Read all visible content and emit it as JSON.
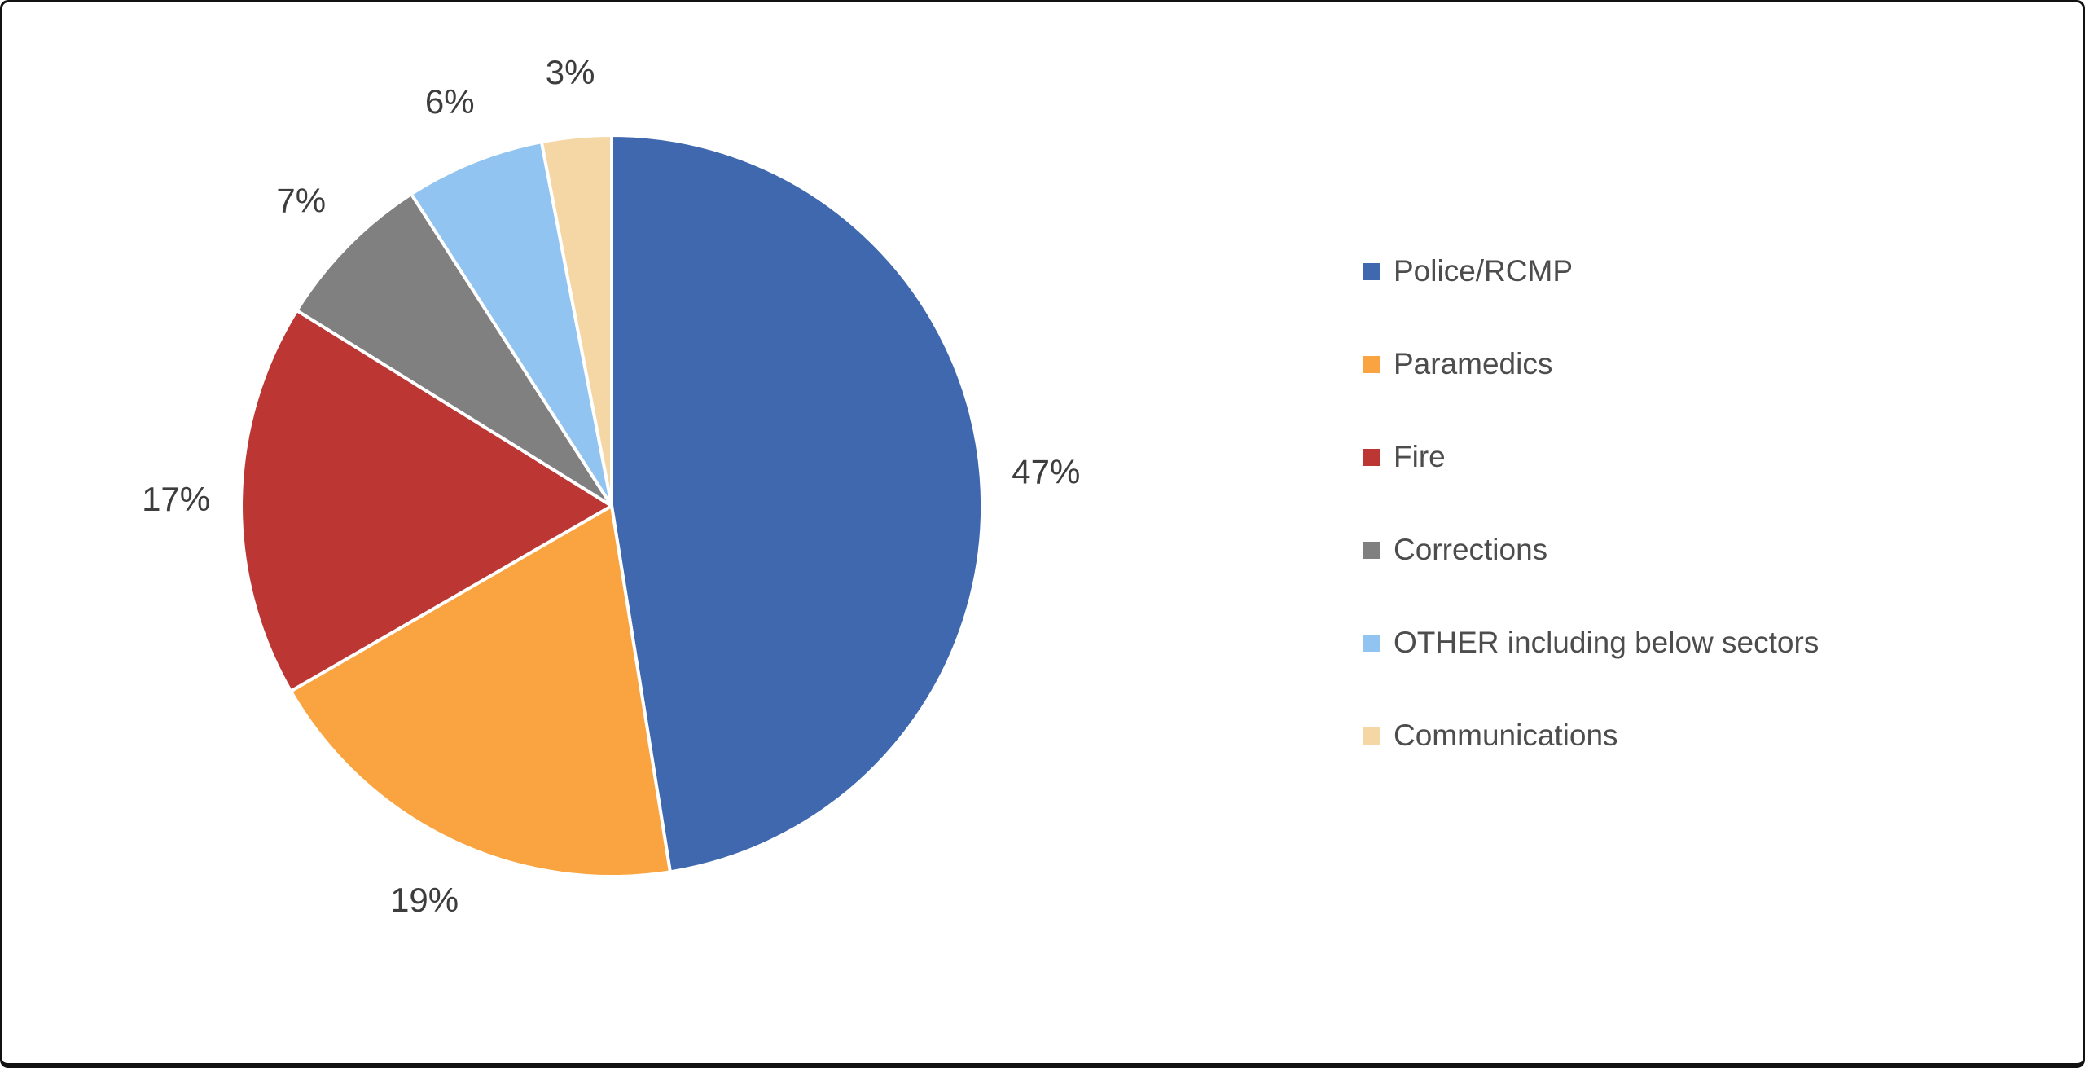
{
  "frame": {
    "background": "#FFFFFF",
    "border_color": "#121212"
  },
  "chart_data": {
    "type": "pie",
    "title": "",
    "categories": [
      "Police/RCMP",
      "Paramedics",
      "Fire",
      "Corrections",
      "OTHER including below sectors",
      "Communications"
    ],
    "values": [
      47,
      19,
      17,
      7,
      6,
      3
    ],
    "labels": [
      "47%",
      "19%",
      "17%",
      "7%",
      "6%",
      "3%"
    ],
    "colors": [
      "#3F68AE",
      "#F9A440",
      "#BC3734",
      "#808080",
      "#91C4F0",
      "#F5D7A5"
    ],
    "start_angle_deg": 0,
    "direction": "clockwise",
    "slice_border_color": "#FFFFFF",
    "data_label_color": "#3D3D3D",
    "legend_position": "right",
    "legend_text_color": "#4D4D4D",
    "grid": "off"
  }
}
